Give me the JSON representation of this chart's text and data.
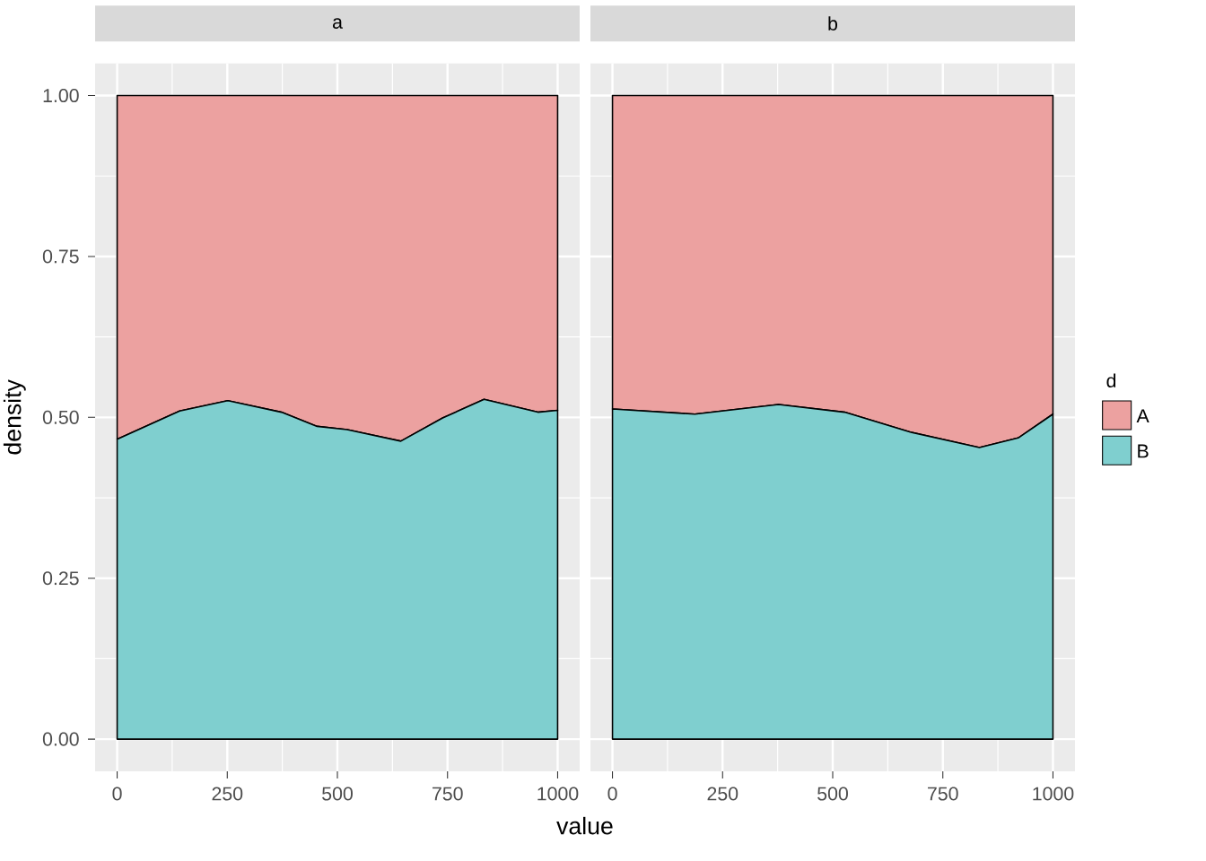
{
  "chart_data": [
    {
      "type": "area",
      "stacked": true,
      "title": "a",
      "xlabel": "value",
      "ylabel": "density",
      "grid": true,
      "legend": "right",
      "legend_title": "d",
      "x": [
        0,
        142,
        251,
        373,
        454,
        522,
        644,
        739,
        833,
        955,
        1000
      ],
      "series": [
        {
          "name": "B",
          "color": "#7fcfcf",
          "values": [
            0.466,
            0.51,
            0.526,
            0.508,
            0.486,
            0.481,
            0.463,
            0.499,
            0.528,
            0.508,
            0.511
          ]
        },
        {
          "name": "A",
          "color": "#eca1a0",
          "values": [
            0.534,
            0.49,
            0.474,
            0.492,
            0.514,
            0.519,
            0.537,
            0.501,
            0.472,
            0.492,
            0.489
          ]
        }
      ],
      "xlim": [
        -50,
        1050
      ],
      "ylim": [
        -0.05,
        1.05
      ],
      "xticks": [
        0,
        250,
        500,
        750,
        1000
      ],
      "yticks": [
        {
          "value": 0,
          "label": "0.00"
        },
        {
          "value": 0.25,
          "label": "0.25"
        },
        {
          "value": 0.5,
          "label": "0.50"
        },
        {
          "value": 0.75,
          "label": "0.75"
        },
        {
          "value": 1,
          "label": "1.00"
        }
      ]
    },
    {
      "type": "area",
      "stacked": true,
      "title": "b",
      "grid": true,
      "tick_labels": "x",
      "x": [
        0,
        187,
        377,
        527,
        676,
        833,
        921,
        1000
      ],
      "series": [
        {
          "color": "#7fcfcf",
          "values": [
            0.513,
            0.505,
            0.52,
            0.508,
            0.477,
            0.453,
            0.468,
            0.505
          ]
        },
        {
          "color": "#eca1a0",
          "values": [
            0.487,
            0.495,
            0.48,
            0.492,
            0.523,
            0.547,
            0.532,
            0.495
          ]
        }
      ],
      "xlim": [
        -50,
        1050
      ],
      "ylim": [
        -0.05,
        1.05
      ],
      "xticks": [
        0,
        250,
        500,
        750,
        1000
      ],
      "yticks": [
        0,
        0.25,
        0.5,
        0.75,
        1
      ]
    }
  ]
}
